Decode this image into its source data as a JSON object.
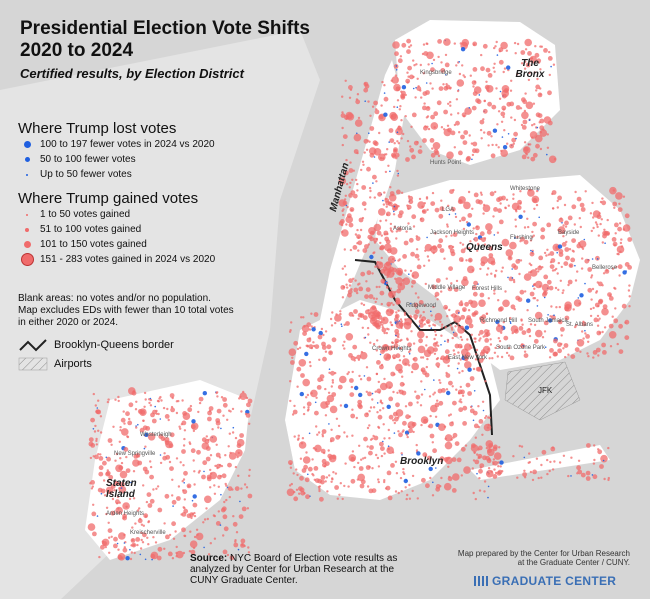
{
  "title_line1": "Presidential Election Vote Shifts",
  "title_line2": "2020 to 2024",
  "subtitle": "Certified results, by Election District",
  "legend_lost": {
    "heading": "Where Trump lost votes",
    "items": [
      {
        "label": "100 to 197 fewer votes in 2024 vs 2020",
        "color": "#1f5fe0"
      },
      {
        "label": "50 to 100 fewer votes",
        "color": "#1f5fe0"
      },
      {
        "label": "Up to 50 fewer votes",
        "color": "#1f5fe0"
      }
    ]
  },
  "legend_gained": {
    "heading": "Where Trump gained votes",
    "items": [
      {
        "label": "1 to 50 votes gained",
        "color": "#f06b6b"
      },
      {
        "label": "51 to 100 votes gained",
        "color": "#f06b6b"
      },
      {
        "label": "101 to 150 votes gained",
        "color": "#f06b6b"
      },
      {
        "label": "151 - 283 votes gained in 2024 vs 2020",
        "color": "#f06b6b"
      }
    ]
  },
  "note_lines": [
    "Blank areas: no votes and/or no population.",
    "Map excludes EDs with fewer than 10 total votes",
    "in either 2020 or 2024."
  ],
  "border_label": "Brooklyn-Queens border",
  "airports_label": "Airports",
  "boroughs": {
    "bronx": "The Bronx",
    "manhattan": "Manhattan",
    "queens": "Queens",
    "brooklyn": "Brooklyn",
    "staten_line1": "Staten",
    "staten_line2": "Island"
  },
  "neighborhoods": {
    "kingsbridge": "Kingsbridge",
    "hunts_point": "Hunts Point",
    "astoria": "Astoria",
    "lga": "LGA",
    "jackson_heights": "Jackson Heights",
    "flushing": "Flushing",
    "bayside": "Bayside",
    "whitestone": "Whitestone",
    "bellerose": "Bellerose",
    "middle_village": "Middle Village",
    "ridgewood": "Ridgewood",
    "forest_hills": "Forest Hills",
    "richmond_hill": "Richmond Hill",
    "south_jamaica": "South Jamaica",
    "st_albans": "St. Albans",
    "south_ozone_park": "South Ozone Park",
    "jfk": "JFK",
    "east_new_york": "East New York",
    "crown_heights": "Crown Heights",
    "westerleigh": "Westerleigh",
    "new_springville": "New Springville",
    "arden_heights": "Arden Heights",
    "kreischer": "Kreischerville"
  },
  "source_bold": "Source:",
  "source_text": " NYC Board of Election vote results as analyzed by Center for Urban Research at the CUNY Graduate Center.",
  "credit_line1": "Map prepared by the Center for Urban Research",
  "credit_line2": "at the Graduate Center / CUNY.",
  "logo_text": "GRADUATE CENTER",
  "colors": {
    "gain": "#f06b6b",
    "lost": "#1f5fe0",
    "land": "#ffffff",
    "water": "#d9d9d9",
    "border": "#222222"
  }
}
